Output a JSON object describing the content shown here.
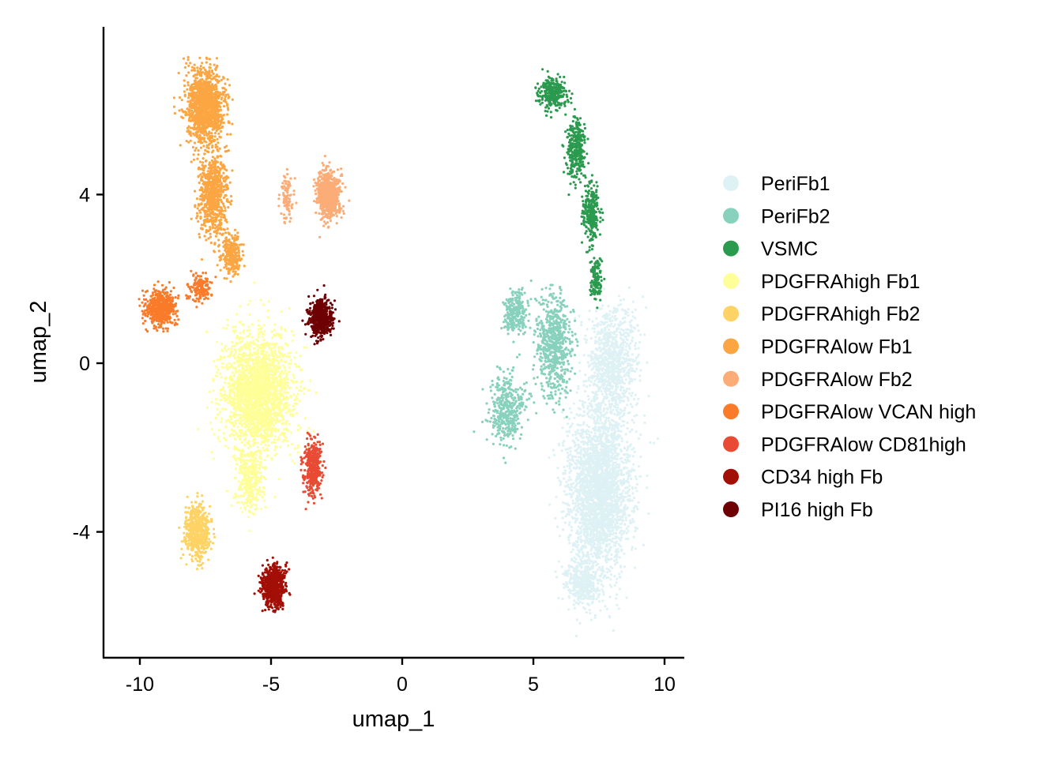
{
  "chart_data": {
    "type": "scatter",
    "title": "",
    "xlabel": "umap_1",
    "ylabel": "umap_2",
    "xlim": [
      -11.4,
      10.8
    ],
    "ylim": [
      -7.0,
      8.0
    ],
    "xticks": [
      -10,
      -5,
      0,
      5,
      10
    ],
    "xtick_labels": [
      "-10",
      "-5",
      "0",
      "5",
      "10"
    ],
    "yticks": [
      -4,
      0,
      4
    ],
    "ytick_labels": [
      "-4",
      "0",
      "4"
    ],
    "grid": false,
    "legend_position": "right",
    "series": [
      {
        "name": "PeriFb1",
        "color": "#DEF1F5",
        "clusters": [
          {
            "center": [
              7.5,
              -3.0
            ],
            "spread": [
              1.0,
              1.7
            ],
            "n": 2600
          },
          {
            "center": [
              8.0,
              0.0
            ],
            "spread": [
              0.75,
              1.1
            ],
            "n": 900
          },
          {
            "center": [
              6.9,
              -5.2
            ],
            "spread": [
              0.55,
              0.45
            ],
            "n": 350
          }
        ]
      },
      {
        "name": "PeriFb2",
        "color": "#88D1BC",
        "clusters": [
          {
            "center": [
              5.8,
              0.4
            ],
            "spread": [
              0.55,
              1.0
            ],
            "n": 650
          },
          {
            "center": [
              4.3,
              1.2
            ],
            "spread": [
              0.35,
              0.45
            ],
            "n": 250
          },
          {
            "center": [
              4.0,
              -1.1
            ],
            "spread": [
              0.55,
              0.65
            ],
            "n": 400
          }
        ]
      },
      {
        "name": "VSMC",
        "color": "#2A9A4E",
        "clusters": [
          {
            "center": [
              5.7,
              6.4
            ],
            "spread": [
              0.45,
              0.3
            ],
            "n": 300
          },
          {
            "center": [
              6.6,
              5.1
            ],
            "spread": [
              0.3,
              0.6
            ],
            "n": 300
          },
          {
            "center": [
              7.2,
              3.6
            ],
            "spread": [
              0.25,
              0.6
            ],
            "n": 260
          },
          {
            "center": [
              7.4,
              2.0
            ],
            "spread": [
              0.18,
              0.4
            ],
            "n": 120
          }
        ]
      },
      {
        "name": "PDGFRAhigh Fb1",
        "color": "#FFFF99",
        "clusters": [
          {
            "center": [
              -5.5,
              -0.7
            ],
            "spread": [
              1.1,
              1.2
            ],
            "n": 2200
          },
          {
            "center": [
              -5.8,
              -2.8
            ],
            "spread": [
              0.45,
              0.6
            ],
            "n": 300
          }
        ]
      },
      {
        "name": "PDGFRAhigh Fb2",
        "color": "#FED365",
        "clusters": [
          {
            "center": [
              -7.8,
              -4.0
            ],
            "spread": [
              0.4,
              0.55
            ],
            "n": 550
          }
        ]
      },
      {
        "name": "PDGFRAlow Fb1",
        "color": "#FBA642",
        "clusters": [
          {
            "center": [
              -7.5,
              6.1
            ],
            "spread": [
              0.6,
              0.7
            ],
            "n": 1300
          },
          {
            "center": [
              -7.2,
              4.0
            ],
            "spread": [
              0.45,
              0.8
            ],
            "n": 700
          },
          {
            "center": [
              -6.5,
              2.6
            ],
            "spread": [
              0.35,
              0.4
            ],
            "n": 250
          }
        ]
      },
      {
        "name": "PDGFRAlow Fb2",
        "color": "#FCAC76",
        "clusters": [
          {
            "center": [
              -2.8,
              4.0
            ],
            "spread": [
              0.35,
              0.45
            ],
            "n": 700
          },
          {
            "center": [
              -4.4,
              3.9
            ],
            "spread": [
              0.2,
              0.5
            ],
            "n": 90
          }
        ]
      },
      {
        "name": "PDGFRAlow VCAN high",
        "color": "#FA7B2A",
        "clusters": [
          {
            "center": [
              -9.2,
              1.3
            ],
            "spread": [
              0.45,
              0.35
            ],
            "n": 550
          },
          {
            "center": [
              -7.7,
              1.8
            ],
            "spread": [
              0.35,
              0.3
            ],
            "n": 150
          }
        ]
      },
      {
        "name": "PDGFRAlow CD81high",
        "color": "#E94A33",
        "clusters": [
          {
            "center": [
              -3.4,
              -2.5
            ],
            "spread": [
              0.28,
              0.55
            ],
            "n": 380
          }
        ]
      },
      {
        "name": "CD34 high Fb",
        "color": "#A20F06",
        "clusters": [
          {
            "center": [
              -4.9,
              -5.3
            ],
            "spread": [
              0.35,
              0.4
            ],
            "n": 750
          }
        ]
      },
      {
        "name": "PI16 high Fb",
        "color": "#6E0104",
        "clusters": [
          {
            "center": [
              -3.1,
              1.1
            ],
            "spread": [
              0.35,
              0.35
            ],
            "n": 600
          }
        ]
      }
    ]
  }
}
